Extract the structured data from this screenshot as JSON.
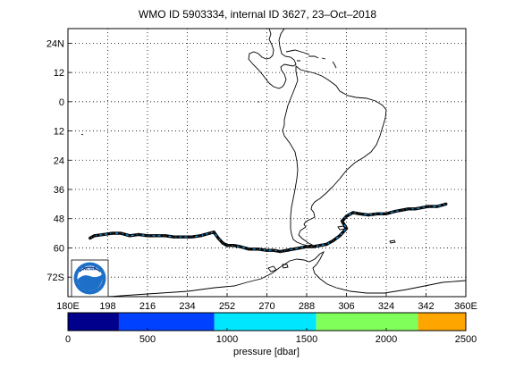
{
  "title": "WMO ID 5903334, internal ID 3627, 23–Oct–2018",
  "map": {
    "lat_labels": [
      "24N",
      "12",
      "0",
      "12",
      "24",
      "36",
      "48",
      "60",
      "72S"
    ],
    "lat_values": [
      24,
      12,
      0,
      -12,
      -24,
      -36,
      -48,
      -60,
      -72
    ],
    "lon_labels": [
      "180E",
      "198",
      "216",
      "234",
      "252",
      "270",
      "288",
      "306",
      "324",
      "342",
      "360E"
    ],
    "lon_values": [
      180,
      198,
      216,
      234,
      252,
      270,
      288,
      306,
      324,
      342,
      360
    ],
    "lon_range": [
      180,
      360
    ],
    "lat_range": [
      -80,
      30
    ],
    "grid": "dotted"
  },
  "colorbar": {
    "ticks": [
      "0",
      "500",
      "1000",
      "1500",
      "2000",
      "2500"
    ],
    "tick_values": [
      0,
      500,
      1000,
      1500,
      2000,
      2500
    ],
    "range": [
      0,
      2500
    ],
    "label": "pressure [dbar]",
    "bands": [
      {
        "from": 0,
        "to": 320,
        "color": "#00008c"
      },
      {
        "from": 320,
        "to": 920,
        "color": "#0040ff"
      },
      {
        "from": 920,
        "to": 1560,
        "color": "#00e6ff"
      },
      {
        "from": 1560,
        "to": 2200,
        "color": "#80ff5a"
      },
      {
        "from": 2200,
        "to": 2500,
        "color": "#ffa500"
      }
    ]
  },
  "logo": {
    "text": "NOAA"
  },
  "chart_data": {
    "type": "scatter",
    "title": "WMO ID 5903334, internal ID 3627, 23–Oct–2018",
    "xlabel": "",
    "ylabel": "",
    "xlim": [
      180,
      360
    ],
    "ylim": [
      -80,
      30
    ],
    "float_track": [
      [
        351,
        -42
      ],
      [
        347,
        -43
      ],
      [
        343,
        -43
      ],
      [
        340,
        -43.5
      ],
      [
        337,
        -44
      ],
      [
        334,
        -44
      ],
      [
        331,
        -44.5
      ],
      [
        328,
        -45
      ],
      [
        324,
        -46
      ],
      [
        320,
        -46
      ],
      [
        316,
        -46.5
      ],
      [
        312,
        -46
      ],
      [
        309,
        -45.5
      ],
      [
        306,
        -47
      ],
      [
        304,
        -49
      ],
      [
        306,
        -52
      ],
      [
        303,
        -55
      ],
      [
        300,
        -57
      ],
      [
        297,
        -58.5
      ],
      [
        294,
        -59
      ],
      [
        291,
        -59.5
      ],
      [
        288,
        -59.5
      ],
      [
        285,
        -60
      ],
      [
        282,
        -60.5
      ],
      [
        279,
        -61
      ],
      [
        276,
        -61.5
      ],
      [
        273,
        -61
      ],
      [
        270,
        -61
      ],
      [
        266,
        -60.5
      ],
      [
        262,
        -60.5
      ],
      [
        258,
        -59.5
      ],
      [
        255,
        -59
      ],
      [
        252,
        -59
      ],
      [
        250,
        -58
      ],
      [
        248,
        -56
      ],
      [
        246,
        -53.5
      ],
      [
        244,
        -54
      ],
      [
        240,
        -55
      ],
      [
        236,
        -55.5
      ],
      [
        232,
        -55.5
      ],
      [
        228,
        -55.5
      ],
      [
        224,
        -55
      ],
      [
        220,
        -55
      ],
      [
        216,
        -55
      ],
      [
        212,
        -54.5
      ],
      [
        208,
        -55
      ],
      [
        204,
        -54
      ],
      [
        200,
        -54
      ],
      [
        196,
        -54.5
      ],
      [
        192,
        -55
      ],
      [
        190,
        -56
      ]
    ]
  }
}
